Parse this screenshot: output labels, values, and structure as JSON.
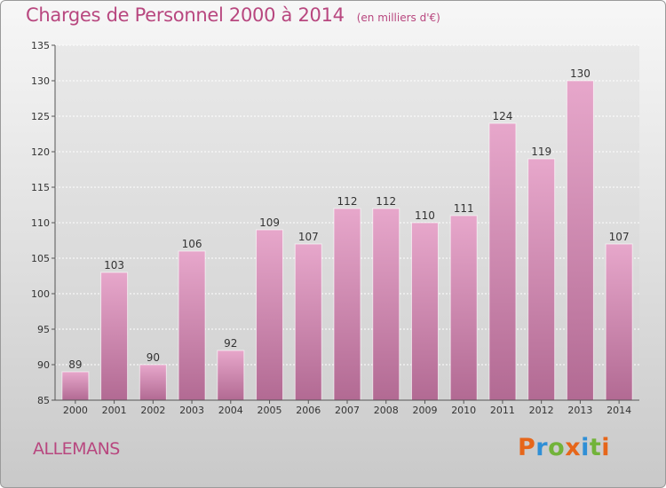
{
  "header": {
    "title": "Charges de Personnel 2000 à 2014",
    "subtitle": "(en milliers d'€)"
  },
  "footer": {
    "commune": "ALLEMANS",
    "brand": "Proxiti"
  },
  "colors": {
    "title": "#b8477f",
    "bar_light": "#e7a7cb",
    "bar_dark": "#b26a93",
    "brand_letters": [
      "#e6661a",
      "#2f8fd6",
      "#72b33a",
      "#e6661a",
      "#2f8fd6",
      "#72b33a",
      "#e6661a"
    ]
  },
  "chart_data": {
    "type": "bar",
    "categories": [
      "2000",
      "2001",
      "2002",
      "2003",
      "2004",
      "2005",
      "2006",
      "2007",
      "2008",
      "2009",
      "2010",
      "2011",
      "2012",
      "2013",
      "2014"
    ],
    "values": [
      89,
      103,
      90,
      106,
      92,
      109,
      107,
      112,
      112,
      110,
      111,
      124,
      119,
      130,
      107
    ],
    "ylim": [
      85,
      135
    ],
    "yticks": [
      85,
      90,
      95,
      100,
      105,
      110,
      115,
      120,
      125,
      130,
      135
    ],
    "grid": true,
    "xlabel": "",
    "ylabel": ""
  }
}
